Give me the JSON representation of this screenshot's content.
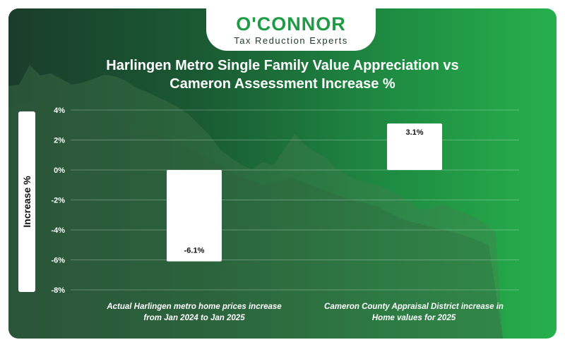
{
  "brand": {
    "name": "O'CONNOR",
    "tagline": "Tax Reduction Experts"
  },
  "colors": {
    "card_dark": "#1a3d2b",
    "card_light": "#27b04c",
    "brand_green": "#1f9a45",
    "bar": "#ffffff",
    "text": "#ffffff"
  },
  "chart_data": {
    "type": "bar",
    "title_lines": [
      "Harlingen Metro Single Family Value Appreciation vs",
      "Cameron Assessment Increase %"
    ],
    "ylabel": "Increase %",
    "xlabel": "",
    "categories": [
      [
        "Actual Harlingen metro home prices increase",
        "from Jan 2024 to Jan 2025"
      ],
      [
        "Cameron County Appraisal District increase in",
        "Home values for 2025"
      ]
    ],
    "values": [
      -6.1,
      3.1
    ],
    "data_labels": [
      "-6.1%",
      "3.1%"
    ],
    "ylim": [
      -8,
      4
    ],
    "yticks": [
      4,
      2,
      0,
      -2,
      -4,
      -6,
      -8
    ],
    "ytick_labels": [
      "4%",
      "2%",
      "0%",
      "-2%",
      "-4%",
      "-6%",
      "-8%"
    ],
    "grid": "horizontal",
    "legend": "none"
  }
}
